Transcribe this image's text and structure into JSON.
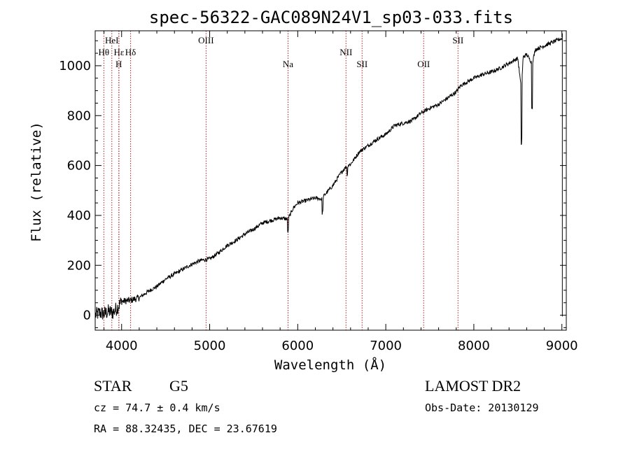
{
  "chart_data": {
    "type": "line",
    "title": "spec-56322-GAC089N24V1_sp03-033.fits",
    "xlabel": "Wavelength (Å)",
    "ylabel": "Flux (relative)",
    "xlim": [
      3700,
      9050
    ],
    "ylim": [
      -60,
      1140
    ],
    "x_ticks": [
      4000,
      5000,
      6000,
      7000,
      8000,
      9000
    ],
    "x_tick_labels": [
      "4000",
      "5000",
      "6000",
      "7000",
      "8000",
      "9000"
    ],
    "y_ticks": [
      0,
      200,
      400,
      600,
      800,
      1000
    ],
    "y_tick_labels": [
      "0",
      "200",
      "400",
      "600",
      "800",
      "1000"
    ],
    "series": [
      {
        "name": "spectrum",
        "x": [
          3700,
          3750,
          3800,
          3850,
          3900,
          3950,
          4000,
          4100,
          4200,
          4300,
          4400,
          4500,
          4600,
          4700,
          4800,
          4900,
          5000,
          5100,
          5200,
          5300,
          5400,
          5500,
          5600,
          5700,
          5800,
          5890,
          5950,
          6000,
          6100,
          6200,
          6280,
          6300,
          6400,
          6500,
          6563,
          6600,
          6700,
          6800,
          6900,
          7000,
          7100,
          7200,
          7300,
          7400,
          7500,
          7600,
          7700,
          7800,
          7850,
          7900,
          8000,
          8100,
          8200,
          8300,
          8400,
          8500,
          8540,
          8560,
          8600,
          8662,
          8700,
          8800,
          8900,
          9000
        ],
        "values": [
          0,
          10,
          5,
          15,
          10,
          30,
          55,
          60,
          70,
          95,
          115,
          145,
          165,
          185,
          205,
          220,
          225,
          250,
          280,
          300,
          325,
          345,
          370,
          380,
          390,
          385,
          430,
          450,
          460,
          470,
          465,
          480,
          520,
          575,
          600,
          605,
          655,
          680,
          705,
          725,
          760,
          770,
          780,
          810,
          830,
          845,
          870,
          895,
          920,
          930,
          950,
          965,
          975,
          990,
          1010,
          1030,
          900,
          1035,
          1045,
          1010,
          1065,
          1080,
          1095,
          1110
        ]
      }
    ],
    "annotations": [
      {
        "label": "Hε",
        "x": 3970,
        "level": 2
      },
      {
        "label": "Hθ",
        "x": 3798,
        "level": 2
      },
      {
        "label": "HeI",
        "x": 3889,
        "level": 1
      },
      {
        "label": "H",
        "x": 3968,
        "level": 3
      },
      {
        "label": "Hδ",
        "x": 4102,
        "level": 2
      },
      {
        "label": "OIII",
        "x": 4959,
        "level": 1
      },
      {
        "label": "Na",
        "x": 5890,
        "level": 3
      },
      {
        "label": "NII",
        "x": 6548,
        "level": 2
      },
      {
        "label": "SII",
        "x": 6731,
        "level": 3
      },
      {
        "label": "OII",
        "x": 7430,
        "level": 3
      },
      {
        "label": "SII",
        "x": 7820,
        "level": 1
      }
    ]
  },
  "info": {
    "object_class": "STAR",
    "subclass": "G5",
    "survey": "LAMOST DR2",
    "redshift_text": "cz = 74.7 ± 0.4 km/s",
    "obs_date_text": "Obs-Date: 20130129",
    "coords_text": "RA =  88.32435, DEC =  23.67619"
  },
  "colors": {
    "line": "#000000",
    "marker": "#b22222",
    "axis": "#000000"
  }
}
